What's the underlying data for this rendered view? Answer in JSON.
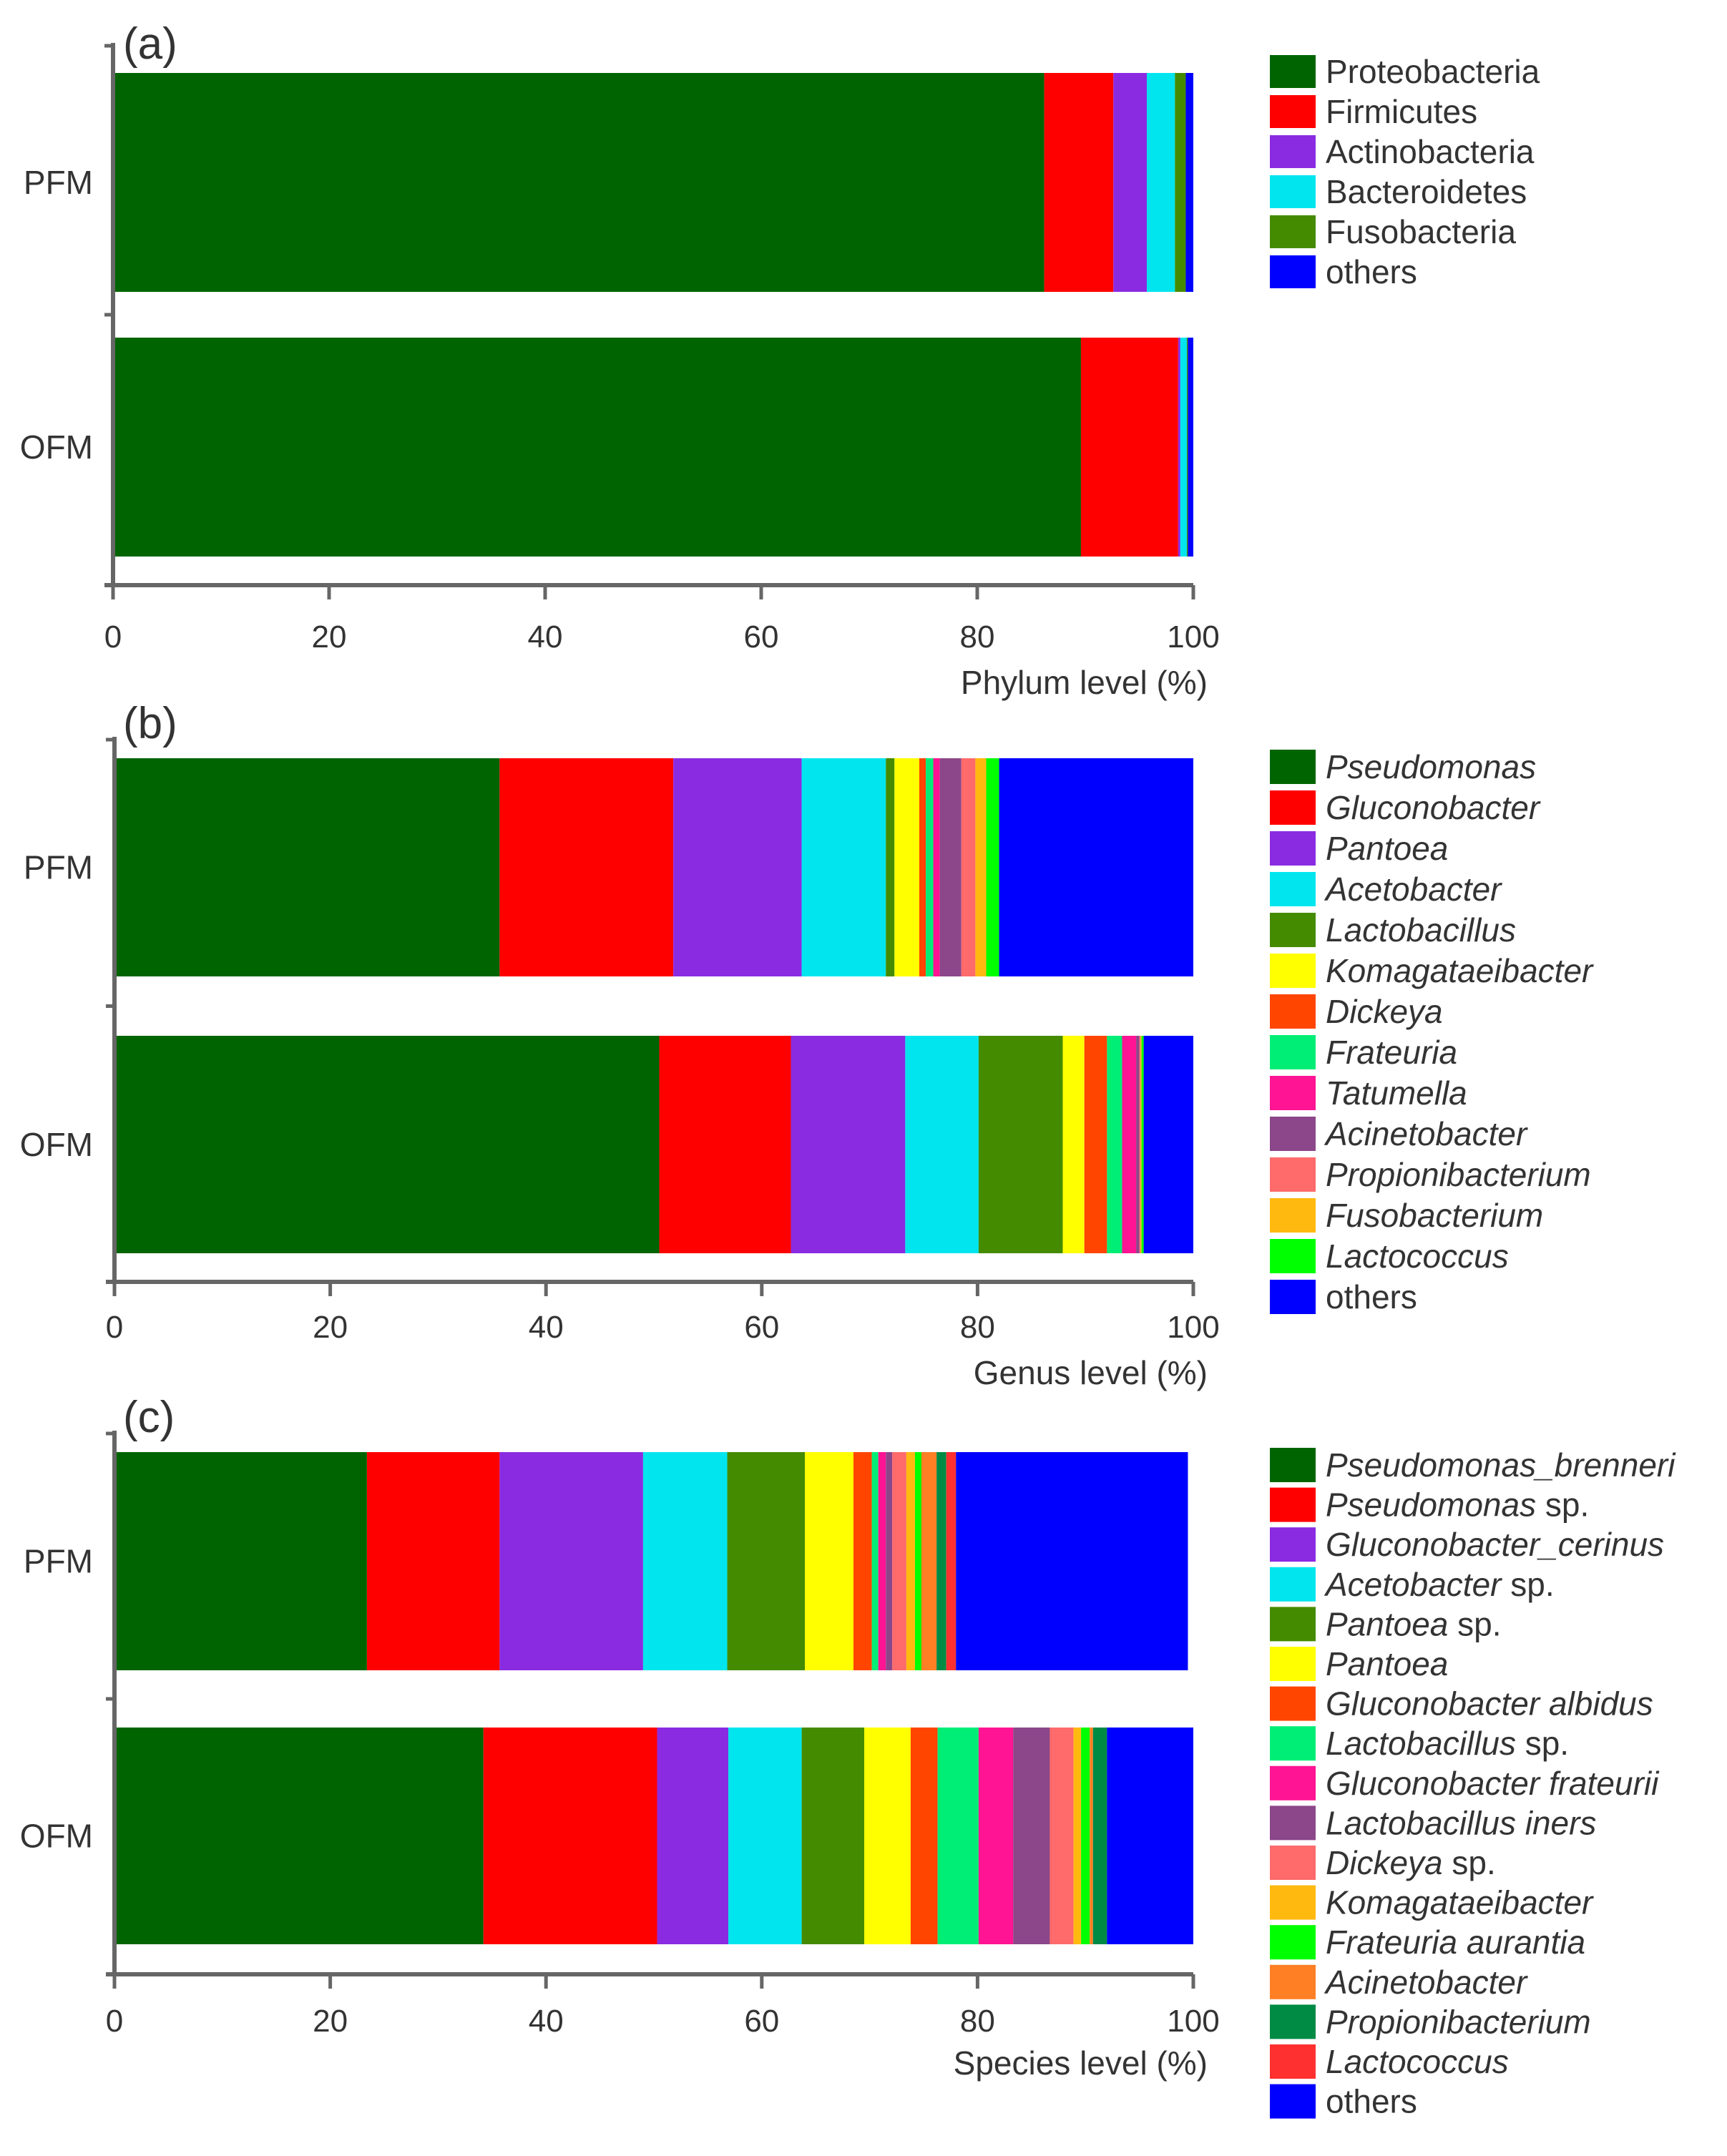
{
  "chart_data": [
    {
      "panel_label": "(a)",
      "type": "bar",
      "orientation": "horizontal",
      "stacked": true,
      "categories": [
        "PFM",
        "OFM"
      ],
      "xlabel": "Phylum level (%)",
      "ylabel": "",
      "xlim": [
        0,
        100
      ],
      "xticks": [
        0,
        20,
        40,
        60,
        80,
        100
      ],
      "grid": false,
      "legend_position": "right",
      "series": [
        {
          "name": "Proteobacteria",
          "italic": false,
          "color": "#006400",
          "values": [
            86.2,
            89.6
          ]
        },
        {
          "name": "Firmicutes",
          "italic": false,
          "color": "#ff0000",
          "values": [
            6.4,
            9.0
          ]
        },
        {
          "name": "Actinobacteria",
          "italic": false,
          "color": "#8a2be2",
          "values": [
            3.1,
            0.2
          ]
        },
        {
          "name": "Bacteroidetes",
          "italic": false,
          "color": "#00e5ee",
          "values": [
            2.6,
            0.6
          ]
        },
        {
          "name": "Fusobacteria",
          "italic": false,
          "color": "#458b00",
          "values": [
            1.0,
            0.1
          ]
        },
        {
          "name": "others",
          "italic": false,
          "color": "#0000ff",
          "values": [
            0.7,
            0.5
          ]
        }
      ]
    },
    {
      "panel_label": "(b)",
      "type": "bar",
      "orientation": "horizontal",
      "stacked": true,
      "categories": [
        "PFM",
        "OFM"
      ],
      "xlabel": "Genus level (%)",
      "ylabel": "",
      "xlim": [
        0,
        100
      ],
      "xticks": [
        0,
        20,
        40,
        60,
        80,
        100
      ],
      "grid": false,
      "legend_position": "right",
      "series": [
        {
          "name": "Pseudomonas",
          "italic": true,
          "color": "#006400",
          "values": [
            35.7,
            50.5
          ]
        },
        {
          "name": "Gluconobacter",
          "italic": true,
          "color": "#ff0000",
          "values": [
            16.1,
            12.2
          ]
        },
        {
          "name": "Pantoea",
          "italic": true,
          "color": "#8a2be2",
          "values": [
            11.9,
            10.6
          ]
        },
        {
          "name": "Acetobacter",
          "italic": true,
          "color": "#00e5ee",
          "values": [
            7.8,
            6.8
          ]
        },
        {
          "name": "Lactobacillus",
          "italic": true,
          "color": "#458b00",
          "values": [
            0.8,
            7.8
          ]
        },
        {
          "name": "Komagataeibacter",
          "italic": true,
          "color": "#ffff00",
          "values": [
            2.3,
            2.0
          ]
        },
        {
          "name": "Dickeya",
          "italic": true,
          "color": "#ff4500",
          "values": [
            0.6,
            2.1
          ]
        },
        {
          "name": "Frateuria",
          "italic": true,
          "color": "#00ee76",
          "values": [
            0.7,
            1.4
          ]
        },
        {
          "name": "Tatumella",
          "italic": true,
          "color": "#ff1493",
          "values": [
            0.6,
            1.3
          ]
        },
        {
          "name": "Acinetobacter",
          "italic": true,
          "color": "#8b4789",
          "values": [
            2.0,
            0.3
          ]
        },
        {
          "name": "Propionibacterium",
          "italic": true,
          "color": "#ff6a6a",
          "values": [
            1.3,
            0.1
          ]
        },
        {
          "name": "Fusobacterium",
          "italic": true,
          "color": "#ffb90f",
          "values": [
            1.0,
            0.1
          ]
        },
        {
          "name": "Lactococcus",
          "italic": true,
          "color": "#00ff00",
          "values": [
            1.2,
            0.2
          ]
        },
        {
          "name": "others",
          "italic": false,
          "color": "#0000ff",
          "values": [
            18.0,
            4.6
          ]
        }
      ]
    },
    {
      "panel_label": "(c)",
      "type": "bar",
      "orientation": "horizontal",
      "stacked": true,
      "categories": [
        "PFM",
        "OFM"
      ],
      "xlabel": "Species level (%)",
      "ylabel": "",
      "xlim": [
        0,
        100
      ],
      "xticks": [
        0,
        20,
        40,
        60,
        80,
        100
      ],
      "grid": false,
      "legend_position": "right",
      "series": [
        {
          "name": "Pseudomonas_brenneri",
          "italic": true,
          "suffix": "",
          "color": "#006400",
          "values": [
            23.4,
            34.2
          ]
        },
        {
          "name": "Pseudomonas",
          "italic": true,
          "suffix": " sp.",
          "color": "#ff0000",
          "values": [
            12.3,
            16.1
          ]
        },
        {
          "name": "Gluconobacter_cerinus",
          "italic": true,
          "suffix": "",
          "color": "#8a2be2",
          "values": [
            13.3,
            6.6
          ]
        },
        {
          "name": "Acetobacter",
          "italic": true,
          "suffix": " sp.",
          "color": "#00e5ee",
          "values": [
            7.8,
            6.8
          ]
        },
        {
          "name": "Pantoea",
          "italic": true,
          "suffix": " sp.",
          "color": "#458b00",
          "values": [
            7.2,
            5.8
          ]
        },
        {
          "name": "Pantoea",
          "italic": true,
          "suffix": "",
          "color": "#ffff00",
          "values": [
            4.5,
            4.3
          ]
        },
        {
          "name": "Gluconobacter albidus",
          "italic": true,
          "suffix": "",
          "color": "#ff4500",
          "values": [
            1.7,
            2.5
          ]
        },
        {
          "name": "Lactobacillus",
          "italic": true,
          "suffix": " sp.",
          "color": "#00ee76",
          "values": [
            0.6,
            3.8
          ]
        },
        {
          "name": "Gluconobacter frateurii",
          "italic": true,
          "suffix": "",
          "color": "#ff1493",
          "values": [
            0.7,
            3.2
          ]
        },
        {
          "name": "Lactobacillus iners",
          "italic": true,
          "suffix": "",
          "color": "#8b4789",
          "values": [
            0.6,
            3.4
          ]
        },
        {
          "name": "Dickeya",
          "italic": true,
          "suffix": " sp.",
          "color": "#ff6a6a",
          "values": [
            1.3,
            2.2
          ]
        },
        {
          "name": "Komagataeibacter",
          "italic": true,
          "suffix": "",
          "color": "#ffb90f",
          "values": [
            0.8,
            0.7
          ]
        },
        {
          "name": "Frateuria aurantia",
          "italic": true,
          "suffix": "",
          "color": "#00ff00",
          "values": [
            0.6,
            0.8
          ]
        },
        {
          "name": "Acinetobacter",
          "italic": true,
          "suffix": "",
          "color": "#ff7f24",
          "values": [
            1.4,
            0.3
          ]
        },
        {
          "name": "Propionibacterium",
          "italic": true,
          "suffix": "",
          "color": "#008b45",
          "values": [
            0.9,
            1.3
          ]
        },
        {
          "name": "Lactococcus",
          "italic": true,
          "suffix": "",
          "color": "#ff3030",
          "values": [
            0.9,
            0.0
          ]
        },
        {
          "name": "others",
          "italic": false,
          "suffix": "",
          "color": "#0000ff",
          "values": [
            21.5,
            8.0
          ]
        }
      ]
    }
  ]
}
